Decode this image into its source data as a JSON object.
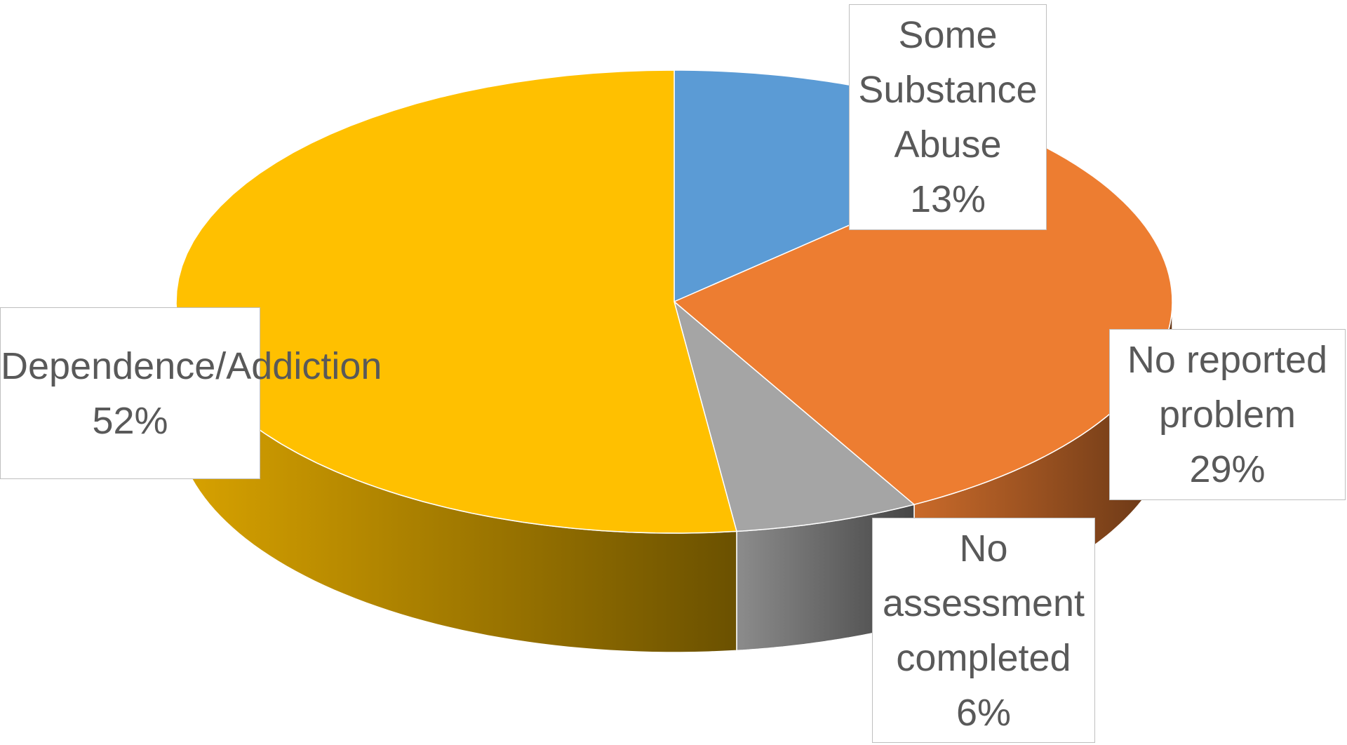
{
  "chart_data": {
    "type": "pie",
    "three_d": true,
    "categories": [
      "Some Substance Abuse",
      "No reported problem",
      "No assessment completed",
      "Dependence/Addiction"
    ],
    "values": [
      13,
      29,
      6,
      52
    ],
    "value_labels": [
      "13%",
      "29%",
      "6%",
      "52%"
    ],
    "colors": [
      "#5b9bd5",
      "#ed7d31",
      "#a5a5a5",
      "#ffc000"
    ]
  }
}
